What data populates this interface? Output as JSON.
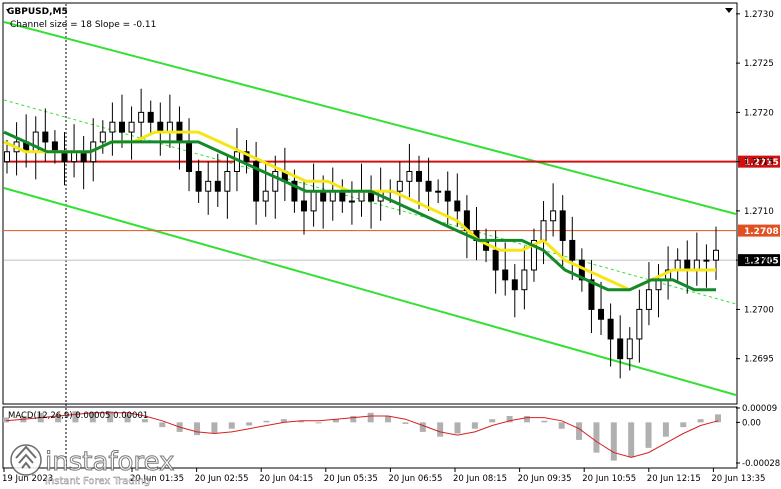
{
  "header": {
    "symbol": "GBPUSD,M5",
    "indicator": "Channel size = 18 Slope = -0.11"
  },
  "macd": {
    "label": "MACD(12,26,9) 0.00005 0.00001",
    "ticks": [
      "0.00009",
      "0.00",
      "-0.00028"
    ]
  },
  "watermark": {
    "brand": "instaforex",
    "tagline": "Instant Forex Trading"
  },
  "colors": {
    "channel": "#33e033",
    "ma_fast": "#f5e616",
    "ma_slow": "#138a2a",
    "level": "#d01010",
    "level_secondary": "#e05020",
    "candles": "#000000",
    "macd_signal": "#d62020",
    "macd_hist": "#b0b0b0"
  },
  "chart_data": {
    "type": "candlestick",
    "symbol": "GBPUSD",
    "timeframe": "M5",
    "ylim": [
      1.26905,
      1.2731
    ],
    "y_ticks": [
      1.2695,
      1.27,
      1.2705,
      1.271,
      1.2715,
      1.272,
      1.2725,
      1.273
    ],
    "y_tick_labels": [
      "1.2695",
      "1.2700",
      "1.2705",
      "1.2710",
      "1.2715",
      "1.2720",
      "1.2725",
      "1.2730"
    ],
    "x_tick_labels": [
      "19 Jun 2023",
      "20 Jun 01:35",
      "20 Jun 02:55",
      "20 Jun 04:15",
      "20 Jun 05:35",
      "20 Jun 06:55",
      "20 Jun 08:15",
      "20 Jun 09:35",
      "20 Jun 10:55",
      "20 Jun 12:15",
      "20 Jun 13:35"
    ],
    "levels": [
      {
        "value": 1.2715,
        "label": "1.2715",
        "style": "red-solid"
      },
      {
        "value": 1.2708,
        "label": "1.2708",
        "style": "orange-solid"
      },
      {
        "value": 1.2705,
        "label": "1.2705",
        "style": "current-price"
      }
    ],
    "close_prices": [
      1.2716,
      1.2717,
      1.2716,
      1.2718,
      1.2717,
      1.2716,
      1.2715,
      1.2716,
      1.2715,
      1.2717,
      1.2718,
      1.2719,
      1.2718,
      1.2719,
      1.272,
      1.2719,
      1.2718,
      1.2719,
      1.2717,
      1.2714,
      1.2712,
      1.2713,
      1.2712,
      1.2714,
      1.2716,
      1.2715,
      1.2711,
      1.2712,
      1.2714,
      1.2713,
      1.2711,
      1.271,
      1.2712,
      1.2711,
      1.2712,
      1.2711,
      1.2711,
      1.2712,
      1.2711,
      1.2712,
      1.2712,
      1.2713,
      1.2714,
      1.2713,
      1.2712,
      1.2712,
      1.2711,
      1.271,
      1.2708,
      1.2707,
      1.2706,
      1.2704,
      1.2703,
      1.2702,
      1.2704,
      1.2707,
      1.2709,
      1.271,
      1.2707,
      1.2705,
      1.2703,
      1.27,
      1.2699,
      1.2697,
      1.2695,
      1.2697,
      1.27,
      1.2702,
      1.2703,
      1.2704,
      1.2705,
      1.2704,
      1.2705,
      1.2705,
      1.2706
    ],
    "series": [
      {
        "name": "",
        "role": "ma_fast",
        "values": [
          1.2717,
          1.2716,
          1.2716,
          1.2716,
          1.2716,
          1.2717,
          1.2717,
          1.2718,
          1.2718,
          1.2718,
          1.2717,
          1.2716,
          1.2715,
          1.2714,
          1.2713,
          1.2713,
          1.2712,
          1.2712,
          1.2712,
          1.2711,
          1.271,
          1.2709,
          1.2707,
          1.2706,
          1.2706,
          1.2707,
          1.2705,
          1.2704,
          1.2703,
          1.2702,
          1.2703,
          1.2704,
          1.2704,
          1.2704
        ]
      },
      {
        "name": "",
        "role": "ma_slow",
        "values": [
          1.2718,
          1.2717,
          1.2716,
          1.2716,
          1.2716,
          1.2717,
          1.2717,
          1.2717,
          1.2717,
          1.2717,
          1.2716,
          1.2715,
          1.2714,
          1.2713,
          1.2712,
          1.2712,
          1.2712,
          1.2712,
          1.2711,
          1.271,
          1.2709,
          1.2708,
          1.2707,
          1.2707,
          1.2707,
          1.2706,
          1.2704,
          1.2703,
          1.2702,
          1.2702,
          1.2703,
          1.2703,
          1.2702,
          1.2702
        ]
      }
    ],
    "macd": {
      "ylim": [
        -0.00028,
        9e-05
      ],
      "hist": [
        3e-05,
        4e-05,
        6e-05,
        5e-05,
        7e-05,
        6e-05,
        7e-05,
        5e-05,
        2e-05,
        -3e-05,
        -6e-05,
        -8e-05,
        -7e-05,
        -4e-05,
        -2e-05,
        1e-05,
        2e-05,
        1e-05,
        0.0,
        2e-05,
        4e-05,
        6e-05,
        4e-05,
        -1e-05,
        -6e-05,
        -9e-05,
        -7e-05,
        -4e-05,
        2e-05,
        4e-05,
        4e-05,
        1e-05,
        -4e-05,
        -0.00011,
        -0.00019,
        -0.00024,
        -0.00022,
        -0.00016,
        -9e-05,
        -3e-05,
        2e-05,
        5e-05
      ],
      "signal": [
        1e-05,
        2e-05,
        3e-05,
        4e-05,
        5e-05,
        6e-05,
        6e-05,
        6e-05,
        4e-05,
        1e-05,
        -3e-05,
        -6e-05,
        -7e-05,
        -6e-05,
        -4e-05,
        -2e-05,
        0.0,
        1e-05,
        1e-05,
        2e-05,
        3e-05,
        4e-05,
        4e-05,
        2e-05,
        -2e-05,
        -6e-05,
        -8e-05,
        -6e-05,
        -2e-05,
        1e-05,
        3e-05,
        3e-05,
        1e-05,
        -4e-05,
        -0.00012,
        -0.00019,
        -0.00022,
        -0.00019,
        -0.00013,
        -7e-05,
        -2e-05,
        1e-05
      ]
    },
    "grid": false,
    "legend": "none"
  }
}
